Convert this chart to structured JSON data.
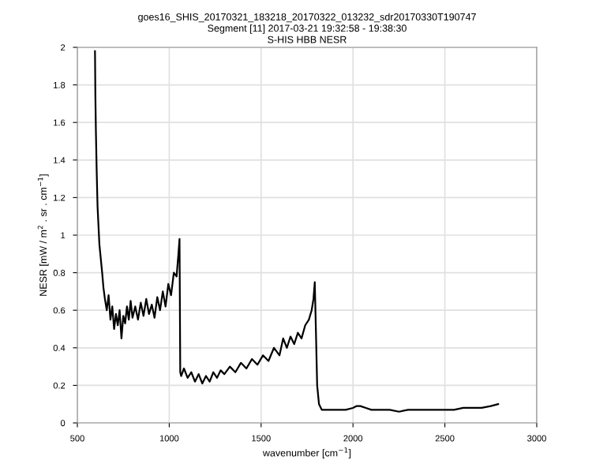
{
  "chart_data": {
    "type": "line",
    "title": "goes16_SHIS_20170321_183218_20170322_013232_sdr20170330T190747\nSegment [11] 2017-03-21 19:32:58 - 19:38:30\nS-HIS HBB NESR",
    "xlabel": "wavenumber [cm$^{−1}$]",
    "ylabel": "NESR [mW / m$^{2}$ . sr . cm$^{−1}$]",
    "x": [
      596,
      598,
      601,
      605,
      610,
      615,
      620,
      627,
      635,
      642,
      650,
      660,
      670,
      680,
      690,
      700,
      710,
      720,
      730,
      740,
      750,
      760,
      770,
      780,
      790,
      800,
      815,
      830,
      845,
      860,
      875,
      890,
      905,
      920,
      935,
      950,
      965,
      980,
      995,
      1010,
      1025,
      1040,
      1050,
      1056,
      1060,
      1065,
      1080,
      1100,
      1120,
      1140,
      1160,
      1180,
      1200,
      1220,
      1240,
      1260,
      1280,
      1300,
      1330,
      1360,
      1390,
      1420,
      1450,
      1480,
      1510,
      1540,
      1570,
      1600,
      1620,
      1640,
      1660,
      1680,
      1700,
      1720,
      1740,
      1760,
      1775,
      1785,
      1792,
      1798,
      1805,
      1815,
      1830,
      1850,
      1880,
      1920,
      1960,
      2000,
      2020,
      2040,
      2070,
      2100,
      2150,
      2200,
      2250,
      2300,
      2350,
      2400,
      2450,
      2500,
      2550,
      2600,
      2650,
      2700,
      2750,
      2790
    ],
    "series": [
      {
        "color": "#000000",
        "values": [
          1.98,
          1.75,
          1.55,
          1.35,
          1.15,
          1.05,
          0.95,
          0.88,
          0.8,
          0.72,
          0.66,
          0.6,
          0.68,
          0.55,
          0.62,
          0.5,
          0.58,
          0.52,
          0.6,
          0.45,
          0.57,
          0.53,
          0.62,
          0.55,
          0.65,
          0.56,
          0.62,
          0.55,
          0.64,
          0.57,
          0.66,
          0.58,
          0.63,
          0.56,
          0.67,
          0.6,
          0.7,
          0.62,
          0.74,
          0.68,
          0.8,
          0.78,
          0.9,
          0.98,
          0.27,
          0.25,
          0.29,
          0.24,
          0.27,
          0.22,
          0.26,
          0.21,
          0.25,
          0.22,
          0.27,
          0.24,
          0.28,
          0.26,
          0.3,
          0.27,
          0.32,
          0.29,
          0.34,
          0.31,
          0.36,
          0.33,
          0.4,
          0.36,
          0.45,
          0.4,
          0.46,
          0.42,
          0.48,
          0.45,
          0.52,
          0.55,
          0.6,
          0.66,
          0.75,
          0.5,
          0.2,
          0.1,
          0.07,
          0.07,
          0.07,
          0.07,
          0.07,
          0.08,
          0.09,
          0.09,
          0.08,
          0.07,
          0.07,
          0.07,
          0.06,
          0.07,
          0.07,
          0.07,
          0.07,
          0.07,
          0.07,
          0.08,
          0.08,
          0.08,
          0.09,
          0.1
        ]
      }
    ],
    "xlim": [
      500,
      3000
    ],
    "ylim": [
      0,
      2
    ],
    "xticks": [
      500,
      1000,
      1500,
      2000,
      2500,
      3000
    ],
    "yticks": [
      0,
      0.2,
      0.4,
      0.6,
      0.8,
      1,
      1.2,
      1.4,
      1.6,
      1.8,
      2
    ],
    "grid": true,
    "marker": "none",
    "line_style": "solid"
  }
}
